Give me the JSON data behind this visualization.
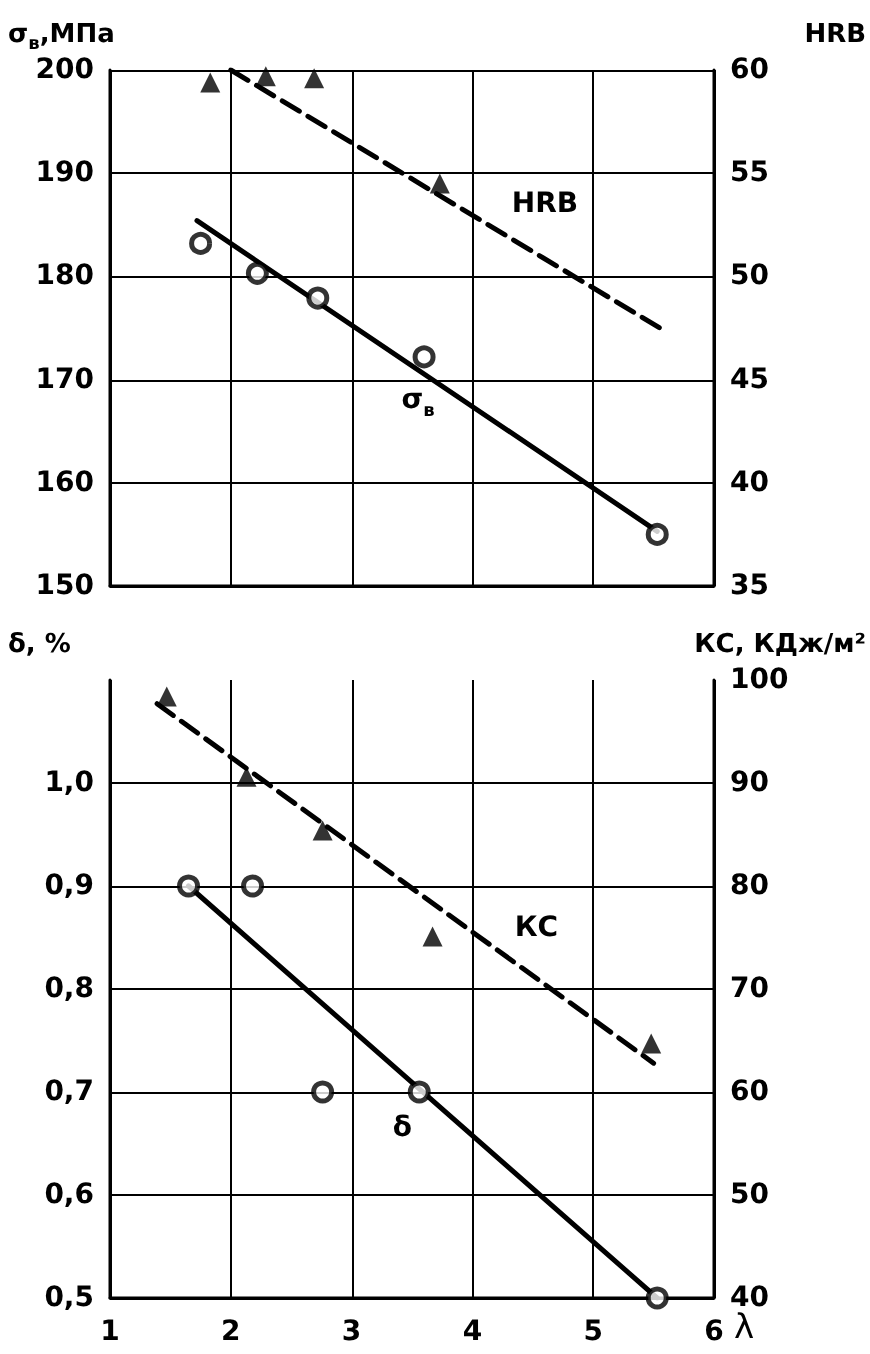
{
  "chart_data": [
    {
      "type": "scatter",
      "ylabel": "σ$_{в}$,МПа",
      "y2label": "HRB",
      "xlim": [
        1,
        6
      ],
      "xticks": [
        1,
        2,
        3,
        4,
        5,
        6
      ],
      "ylim": [
        150,
        200
      ],
      "yticks": [
        150,
        160,
        170,
        180,
        190,
        200
      ],
      "y2lim": [
        35,
        60
      ],
      "y2ticks": [
        35,
        40,
        45,
        50,
        55,
        60
      ],
      "grid": true,
      "tick_labels": "y",
      "annotations": [
        {
          "text": "HRB",
          "x": 4.6,
          "y": 187
        },
        {
          "text": "σ$_{в}$",
          "x": 3.55,
          "y": 167.6
        }
      ],
      "series": [
        {
          "marker": "circle",
          "color": "#000000",
          "x": [
            1.75,
            2.22,
            2.72,
            3.6,
            5.53
          ],
          "values": [
            183.2,
            180.3,
            177.9,
            172.2,
            155
          ]
        },
        {
          "type": "line",
          "line_style": "solid",
          "marker": "none",
          "color": "#000000",
          "x": [
            1.72,
            5.53
          ],
          "values": [
            185.4,
            155.3
          ]
        },
        {
          "marker": "triangle",
          "axis": "y2",
          "color": "#000000",
          "x": [
            1.83,
            2.29,
            2.69,
            3.73
          ],
          "values": [
            59.4,
            59.7,
            59.6,
            54.5
          ]
        },
        {
          "type": "line",
          "line_style": "dashed",
          "marker": "none",
          "axis": "y2",
          "color": "#000000",
          "x": [
            2.0,
            5.58
          ],
          "values": [
            60,
            47.4
          ]
        }
      ]
    },
    {
      "type": "scatter",
      "ylabel": "δ, %",
      "y2label": "КС, КДж/м²",
      "xlabel": "λ",
      "xlim": [
        1,
        6
      ],
      "xticks": [
        1,
        2,
        3,
        4,
        5,
        6
      ],
      "ylim": [
        0.5,
        1.1
      ],
      "yticks": [
        {
          "value": 0.5,
          "label": "0,5"
        },
        {
          "value": 0.6,
          "label": "0,6"
        },
        {
          "value": 0.7,
          "label": "0,7"
        },
        {
          "value": 0.8,
          "label": "0,8"
        },
        {
          "value": 0.9,
          "label": "0,9"
        },
        {
          "value": 1.0,
          "label": "1,0"
        }
      ],
      "y2lim": [
        40,
        100
      ],
      "y2ticks": [
        40,
        50,
        60,
        70,
        80,
        90,
        100
      ],
      "grid": true,
      "annotations": [
        {
          "text": "КС",
          "x": 4.53,
          "y": 0.86
        },
        {
          "text": "δ",
          "x": 3.42,
          "y": 0.666
        }
      ],
      "series": [
        {
          "marker": "circle",
          "color": "#000000",
          "x": [
            1.65,
            2.18,
            2.76,
            3.56,
            5.53
          ],
          "values": [
            0.9,
            0.9,
            0.7,
            0.7,
            0.5
          ]
        },
        {
          "type": "line",
          "line_style": "solid",
          "marker": "none",
          "color": "#000000",
          "x": [
            1.65,
            5.53
          ],
          "values": [
            0.9,
            0.5
          ]
        },
        {
          "marker": "triangle",
          "axis": "y2",
          "color": "#000000",
          "x": [
            1.47,
            2.13,
            2.76,
            3.67,
            5.48
          ],
          "values": [
            98.4,
            90.6,
            85.4,
            75.1,
            64.7
          ]
        },
        {
          "type": "line",
          "line_style": "dashed",
          "marker": "none",
          "axis": "y2",
          "color": "#000000",
          "x": [
            1.39,
            5.5
          ],
          "values": [
            97.7,
            62.8
          ]
        }
      ]
    }
  ]
}
